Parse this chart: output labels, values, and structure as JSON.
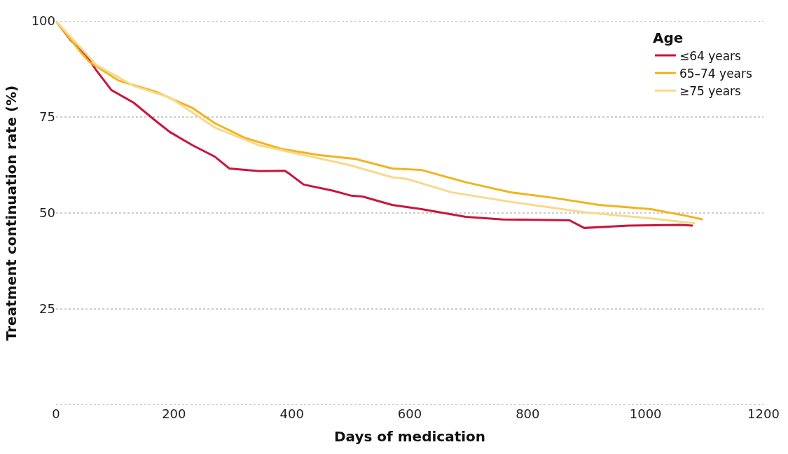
{
  "chart_data": {
    "type": "line",
    "xlabel": "Days of medication",
    "ylabel": "Treatment continuation rate (%)",
    "legend_title": "Age",
    "xlim": [
      0,
      1200
    ],
    "xticks": [
      0,
      200,
      400,
      600,
      800,
      1000,
      1200
    ],
    "ylim": [
      0,
      100
    ],
    "yticks": [
      {
        "value": 0,
        "label": null
      },
      25,
      50,
      75,
      100
    ],
    "grid": "y",
    "legend": "top right",
    "marker": "none",
    "line_style": "solid",
    "series": [
      {
        "name": "≤64 years",
        "color": "#c8163c",
        "x": [
          0,
          25,
          50,
          69,
          94,
          132,
          169,
          194,
          232,
          269,
          294,
          345,
          388,
          395,
          420,
          470,
          501,
          520,
          570,
          620,
          695,
          758,
          871,
          896,
          971,
          1059,
          1080
        ],
        "values": [
          100,
          95,
          91.3,
          87,
          82,
          78.7,
          74,
          71,
          67.6,
          64.7,
          61.6,
          60.9,
          61,
          60.3,
          57.4,
          55.8,
          54.5,
          54.3,
          52.1,
          51,
          49,
          48.3,
          48.1,
          46.1,
          46.7,
          46.9,
          46.7
        ]
      },
      {
        "name": "65–74 years",
        "color": "#f2b31c",
        "x": [
          0,
          44,
          57,
          106,
          169,
          232,
          269,
          320,
          382,
          445,
          507,
          570,
          620,
          695,
          771,
          846,
          921,
          1009,
          1071,
          1097
        ],
        "values": [
          100,
          91.5,
          89.3,
          84.5,
          81.6,
          77.3,
          73.4,
          69.6,
          66.7,
          65.1,
          64.1,
          61.6,
          61.2,
          58,
          55.4,
          53.9,
          52.1,
          51,
          49.2,
          48.3
        ]
      },
      {
        "name": "≥75 years",
        "color": "#f7d98a",
        "x": [
          0,
          69,
          132,
          194,
          269,
          345,
          420,
          495,
          570,
          595,
          670,
          771,
          896,
          1009,
          1084
        ],
        "values": [
          100,
          88.5,
          83.1,
          80,
          72.3,
          67.6,
          65.1,
          62.6,
          59.3,
          58.9,
          55.4,
          52.9,
          50.2,
          48.6,
          47.3
        ]
      }
    ]
  }
}
